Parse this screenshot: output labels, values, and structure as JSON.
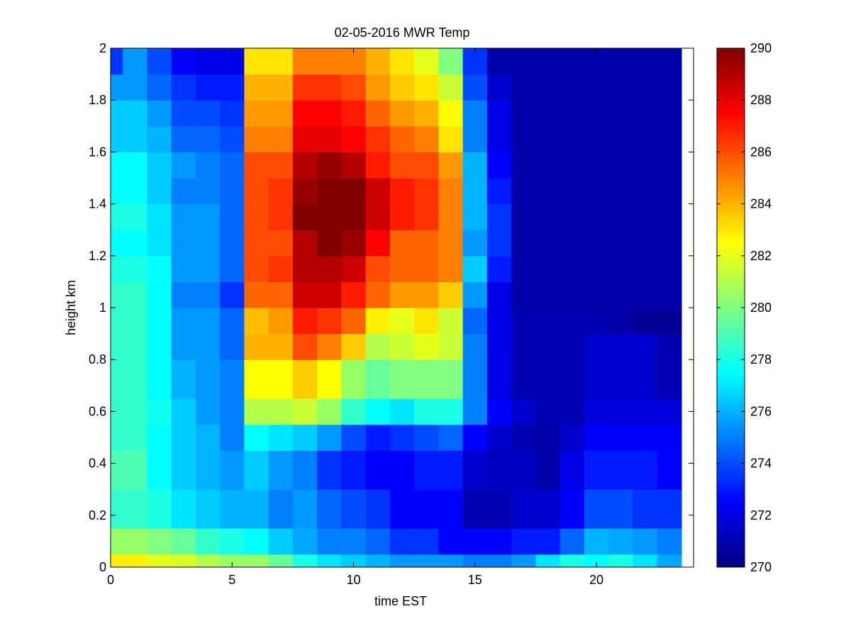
{
  "chart_data": {
    "type": "heatmap",
    "title": "02-05-2016 MWR Temp",
    "xlabel": "time EST",
    "ylabel": "height km",
    "xlim": [
      0,
      24
    ],
    "ylim": [
      0,
      2
    ],
    "x_ticks": [
      0,
      5,
      10,
      15,
      20
    ],
    "y_ticks": [
      0,
      0.2,
      0.4,
      0.6,
      0.8,
      1,
      1.2,
      1.4,
      1.6,
      1.8,
      2
    ],
    "colorbar": {
      "min": 270,
      "max": 290,
      "ticks": [
        270,
        272,
        274,
        276,
        278,
        280,
        282,
        284,
        286,
        288,
        290
      ],
      "colormap": "jet"
    },
    "grid": false,
    "x_edges": [
      0,
      0.5,
      1.5,
      2.5,
      3.5,
      4.5,
      5.5,
      6.5,
      7.5,
      8.5,
      9.5,
      10.5,
      11.5,
      12.5,
      13.5,
      14.5,
      15.5,
      16.5,
      17.5,
      18.5,
      19.5,
      20.5,
      21.5,
      22.5,
      23.5
    ],
    "y_edges": [
      0,
      0.05,
      0.15,
      0.3,
      0.45,
      0.55,
      0.65,
      0.8,
      0.9,
      1.0,
      1.1,
      1.2,
      1.3,
      1.4,
      1.5,
      1.6,
      1.7,
      1.8,
      1.9,
      2.0
    ],
    "values": [
      [
        282.8,
        282.8,
        282.0,
        281.8,
        281.0,
        280.5,
        280.5,
        279.5,
        278.0,
        277.0,
        276.5,
        276.0,
        275.5,
        275.5,
        275.5,
        275.0,
        275.0,
        275.5,
        277.0,
        278.0,
        277.5,
        278.0,
        277.0,
        275.8
      ],
      [
        280.5,
        280.5,
        280.0,
        279.5,
        278.5,
        278.0,
        277.5,
        276.5,
        275.8,
        275.0,
        275.0,
        274.5,
        273.5,
        273.5,
        272.5,
        272.5,
        272.5,
        273.0,
        273.0,
        274.5,
        276.0,
        275.8,
        275.5,
        275.0
      ],
      [
        278.5,
        278.5,
        278.0,
        277.0,
        276.5,
        276.0,
        276.0,
        275.0,
        275.5,
        274.5,
        274.0,
        273.5,
        272.5,
        272.5,
        272.5,
        271.0,
        271.0,
        271.5,
        271.5,
        272.5,
        274.0,
        274.0,
        273.5,
        273.5
      ],
      [
        279.0,
        279.0,
        277.5,
        276.5,
        276.0,
        275.5,
        276.5,
        275.5,
        275.0,
        273.5,
        273.0,
        272.5,
        272.5,
        273.0,
        273.0,
        271.5,
        271.3,
        271.3,
        270.8,
        272.0,
        273.0,
        273.0,
        273.0,
        272.5
      ],
      [
        278.5,
        278.5,
        277.5,
        276.5,
        276.0,
        275.0,
        277.5,
        277.0,
        276.5,
        275.5,
        274.0,
        273.0,
        273.5,
        274.0,
        274.5,
        272.5,
        271.5,
        271.0,
        270.8,
        271.5,
        272.5,
        272.5,
        272.5,
        272.5
      ],
      [
        278.5,
        278.5,
        277.8,
        276.5,
        275.5,
        275.0,
        281.0,
        281.0,
        281.5,
        280.5,
        278.5,
        277.5,
        277.0,
        278.0,
        278.0,
        275.0,
        272.5,
        271.5,
        271.0,
        271.0,
        271.8,
        271.8,
        271.8,
        271.8
      ],
      [
        278.5,
        278.5,
        277.5,
        276.0,
        275.5,
        275.0,
        282.5,
        282.5,
        283.5,
        282.5,
        280.5,
        279.5,
        280.0,
        280.0,
        280.0,
        275.0,
        272.0,
        271.0,
        271.0,
        271.0,
        271.5,
        271.5,
        271.5,
        271.0
      ],
      [
        278.5,
        278.5,
        277.5,
        275.5,
        275.5,
        274.5,
        284.0,
        284.0,
        286.0,
        285.0,
        283.5,
        281.0,
        281.5,
        282.0,
        281.5,
        275.0,
        272.0,
        271.0,
        271.0,
        271.0,
        271.5,
        271.5,
        271.5,
        271.0
      ],
      [
        278.5,
        278.5,
        277.5,
        275.5,
        275.5,
        274.5,
        283.8,
        284.5,
        287.0,
        286.5,
        285.5,
        282.8,
        282.0,
        283.0,
        281.5,
        274.5,
        272.0,
        271.0,
        271.0,
        271.0,
        271.0,
        270.8,
        270.5,
        270.5
      ],
      [
        278.5,
        278.5,
        277.5,
        275.0,
        275.0,
        273.5,
        285.5,
        285.5,
        288.5,
        288.5,
        287.0,
        285.5,
        284.5,
        284.5,
        283.5,
        275.5,
        272.0,
        270.8,
        270.8,
        270.8,
        270.8,
        270.8,
        270.8,
        270.8
      ],
      [
        278.0,
        278.0,
        277.5,
        275.5,
        275.5,
        274.5,
        286.0,
        286.5,
        289.0,
        289.0,
        288.5,
        286.0,
        285.5,
        285.5,
        285.0,
        276.5,
        273.0,
        270.8,
        270.8,
        270.8,
        270.8,
        270.8,
        270.8,
        270.8
      ],
      [
        277.5,
        277.5,
        277.0,
        275.5,
        275.5,
        274.5,
        286.0,
        286.0,
        289.0,
        290.0,
        289.5,
        287.5,
        285.5,
        285.5,
        285.0,
        275.5,
        273.5,
        270.8,
        270.8,
        270.8,
        270.8,
        270.8,
        270.8,
        270.8
      ],
      [
        278.0,
        278.0,
        277.0,
        275.5,
        275.5,
        274.5,
        286.0,
        286.5,
        290.0,
        290.0,
        290.0,
        288.5,
        287.0,
        286.5,
        285.0,
        276.0,
        273.5,
        270.8,
        270.8,
        270.8,
        270.8,
        270.8,
        270.8,
        270.8
      ],
      [
        277.5,
        277.5,
        276.5,
        275.0,
        275.0,
        274.5,
        286.0,
        286.5,
        289.5,
        290.0,
        290.0,
        288.5,
        287.0,
        286.5,
        285.0,
        276.0,
        273.0,
        270.8,
        270.8,
        270.8,
        270.8,
        270.8,
        270.8,
        270.8
      ],
      [
        277.5,
        277.5,
        276.5,
        275.5,
        275.0,
        274.5,
        286.0,
        286.0,
        289.0,
        289.5,
        289.0,
        287.0,
        286.0,
        286.0,
        284.5,
        276.0,
        272.5,
        270.8,
        270.8,
        270.8,
        270.8,
        270.8,
        270.8,
        270.8
      ],
      [
        276.5,
        276.5,
        276.0,
        274.5,
        274.5,
        274.0,
        285.0,
        285.0,
        288.0,
        288.0,
        287.5,
        286.5,
        285.5,
        285.0,
        283.0,
        275.0,
        272.0,
        270.8,
        270.8,
        270.8,
        270.8,
        270.8,
        270.8,
        270.8
      ],
      [
        276.5,
        276.5,
        275.5,
        274.0,
        274.0,
        273.5,
        284.5,
        284.5,
        287.5,
        287.5,
        287.0,
        285.5,
        284.5,
        284.0,
        282.5,
        275.0,
        272.0,
        270.8,
        270.8,
        270.8,
        270.8,
        270.8,
        270.8,
        270.8
      ],
      [
        275.5,
        275.5,
        274.5,
        273.5,
        273.0,
        273.0,
        284.0,
        284.0,
        286.5,
        286.5,
        286.0,
        284.5,
        283.5,
        283.0,
        281.5,
        274.0,
        271.5,
        270.8,
        270.8,
        270.8,
        270.8,
        270.8,
        270.8,
        270.8
      ],
      [
        273.5,
        275.5,
        274.0,
        272.5,
        272.0,
        272.0,
        283.0,
        283.0,
        285.0,
        285.0,
        285.0,
        284.0,
        283.0,
        282.0,
        280.0,
        273.5,
        270.8,
        270.8,
        270.8,
        270.8,
        270.8,
        270.8,
        270.8,
        270.8
      ]
    ]
  }
}
